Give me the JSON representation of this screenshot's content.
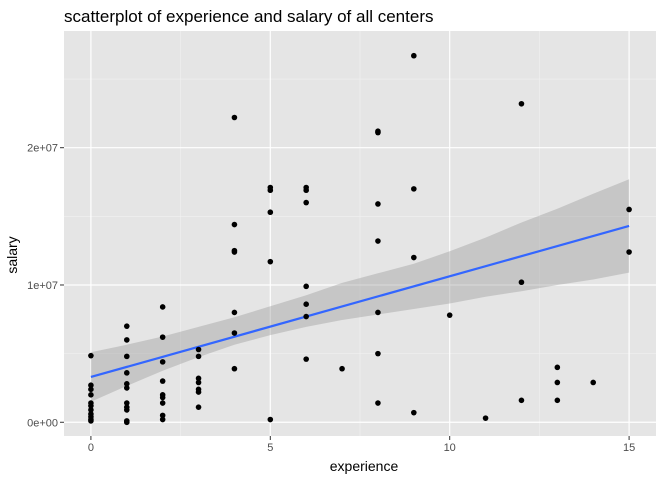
{
  "chart_data": {
    "type": "scatter",
    "title": "scatterplot of experience and salary of all centers",
    "xlabel": "experience",
    "ylabel": "salary",
    "xlim": [
      -0.75,
      15.75
    ],
    "ylim": [
      -1000000,
      28500000
    ],
    "x_ticks": [
      {
        "value": 0,
        "label": "0"
      },
      {
        "value": 5,
        "label": "5"
      },
      {
        "value": 10,
        "label": "10"
      },
      {
        "value": 15,
        "label": "15"
      }
    ],
    "y_ticks": [
      {
        "value": 0,
        "label": "0e+00"
      },
      {
        "value": 10000000,
        "label": "1e+07"
      },
      {
        "value": 20000000,
        "label": "2e+07"
      }
    ],
    "grid": true,
    "background": "#e5e5e5",
    "point_color": "#000000",
    "fit_color": "#3366ff",
    "band_color": "#999999",
    "points": [
      {
        "x": 0,
        "y": 4850000
      },
      {
        "x": 0,
        "y": 2700000
      },
      {
        "x": 0,
        "y": 2400000
      },
      {
        "x": 0,
        "y": 2000000
      },
      {
        "x": 0,
        "y": 1400000
      },
      {
        "x": 0,
        "y": 1200000
      },
      {
        "x": 0,
        "y": 900000
      },
      {
        "x": 0,
        "y": 600000
      },
      {
        "x": 0,
        "y": 400000
      },
      {
        "x": 0,
        "y": 200000
      },
      {
        "x": 0,
        "y": 100000
      },
      {
        "x": 1,
        "y": 7000000
      },
      {
        "x": 1,
        "y": 6000000
      },
      {
        "x": 1,
        "y": 4800000
      },
      {
        "x": 1,
        "y": 3600000
      },
      {
        "x": 1,
        "y": 2800000
      },
      {
        "x": 1,
        "y": 2500000
      },
      {
        "x": 1,
        "y": 1400000
      },
      {
        "x": 1,
        "y": 1100000
      },
      {
        "x": 1,
        "y": 900000
      },
      {
        "x": 1,
        "y": 100000
      },
      {
        "x": 1,
        "y": 0
      },
      {
        "x": 2,
        "y": 8400000
      },
      {
        "x": 2,
        "y": 6200000
      },
      {
        "x": 2,
        "y": 4400000
      },
      {
        "x": 2,
        "y": 3000000
      },
      {
        "x": 2,
        "y": 2000000
      },
      {
        "x": 2,
        "y": 1800000
      },
      {
        "x": 2,
        "y": 1400000
      },
      {
        "x": 2,
        "y": 500000
      },
      {
        "x": 2,
        "y": 200000
      },
      {
        "x": 3,
        "y": 5300000
      },
      {
        "x": 3,
        "y": 4800000
      },
      {
        "x": 3,
        "y": 3200000
      },
      {
        "x": 3,
        "y": 2900000
      },
      {
        "x": 3,
        "y": 2400000
      },
      {
        "x": 3,
        "y": 2200000
      },
      {
        "x": 3,
        "y": 1100000
      },
      {
        "x": 4,
        "y": 22200000
      },
      {
        "x": 4,
        "y": 14400000
      },
      {
        "x": 4,
        "y": 12500000
      },
      {
        "x": 4,
        "y": 12400000
      },
      {
        "x": 4,
        "y": 8000000
      },
      {
        "x": 4,
        "y": 6500000
      },
      {
        "x": 4,
        "y": 3900000
      },
      {
        "x": 5,
        "y": 17100000
      },
      {
        "x": 5,
        "y": 16900000
      },
      {
        "x": 5,
        "y": 15300000
      },
      {
        "x": 5,
        "y": 11700000
      },
      {
        "x": 5,
        "y": 200000
      },
      {
        "x": 6,
        "y": 17100000
      },
      {
        "x": 6,
        "y": 16900000
      },
      {
        "x": 6,
        "y": 16000000
      },
      {
        "x": 6,
        "y": 9900000
      },
      {
        "x": 6,
        "y": 8600000
      },
      {
        "x": 6,
        "y": 7700000
      },
      {
        "x": 6,
        "y": 4600000
      },
      {
        "x": 7,
        "y": 3900000
      },
      {
        "x": 8,
        "y": 21200000
      },
      {
        "x": 8,
        "y": 21100000
      },
      {
        "x": 8,
        "y": 15900000
      },
      {
        "x": 8,
        "y": 13200000
      },
      {
        "x": 8,
        "y": 8000000
      },
      {
        "x": 8,
        "y": 5000000
      },
      {
        "x": 8,
        "y": 1400000
      },
      {
        "x": 9,
        "y": 26700000
      },
      {
        "x": 9,
        "y": 17000000
      },
      {
        "x": 9,
        "y": 12000000
      },
      {
        "x": 9,
        "y": 700000
      },
      {
        "x": 10,
        "y": 7800000
      },
      {
        "x": 11,
        "y": 300000
      },
      {
        "x": 12,
        "y": 23200000
      },
      {
        "x": 12,
        "y": 10200000
      },
      {
        "x": 12,
        "y": 1600000
      },
      {
        "x": 13,
        "y": 4000000
      },
      {
        "x": 13,
        "y": 2900000
      },
      {
        "x": 13,
        "y": 1600000
      },
      {
        "x": 14,
        "y": 2900000
      },
      {
        "x": 15,
        "y": 15500000
      },
      {
        "x": 15,
        "y": 12400000
      }
    ],
    "fit_line": {
      "x": [
        0,
        15
      ],
      "y": [
        3300000,
        14300000
      ]
    },
    "confidence_band": {
      "x": [
        0,
        1,
        2,
        3,
        4,
        5,
        6,
        7,
        8,
        9,
        10,
        11,
        12,
        13,
        14,
        15
      ],
      "lower": [
        1500000,
        2650000,
        3750000,
        4750000,
        5650000,
        6350000,
        6950000,
        7450000,
        7850000,
        8250000,
        8650000,
        9150000,
        9550000,
        10000000,
        10400000,
        10900000
      ],
      "upper": [
        5100000,
        5650000,
        6250000,
        6950000,
        7650000,
        8450000,
        9250000,
        10150000,
        10850000,
        11550000,
        12450000,
        13450000,
        14550000,
        15550000,
        16650000,
        17700000
      ]
    }
  }
}
